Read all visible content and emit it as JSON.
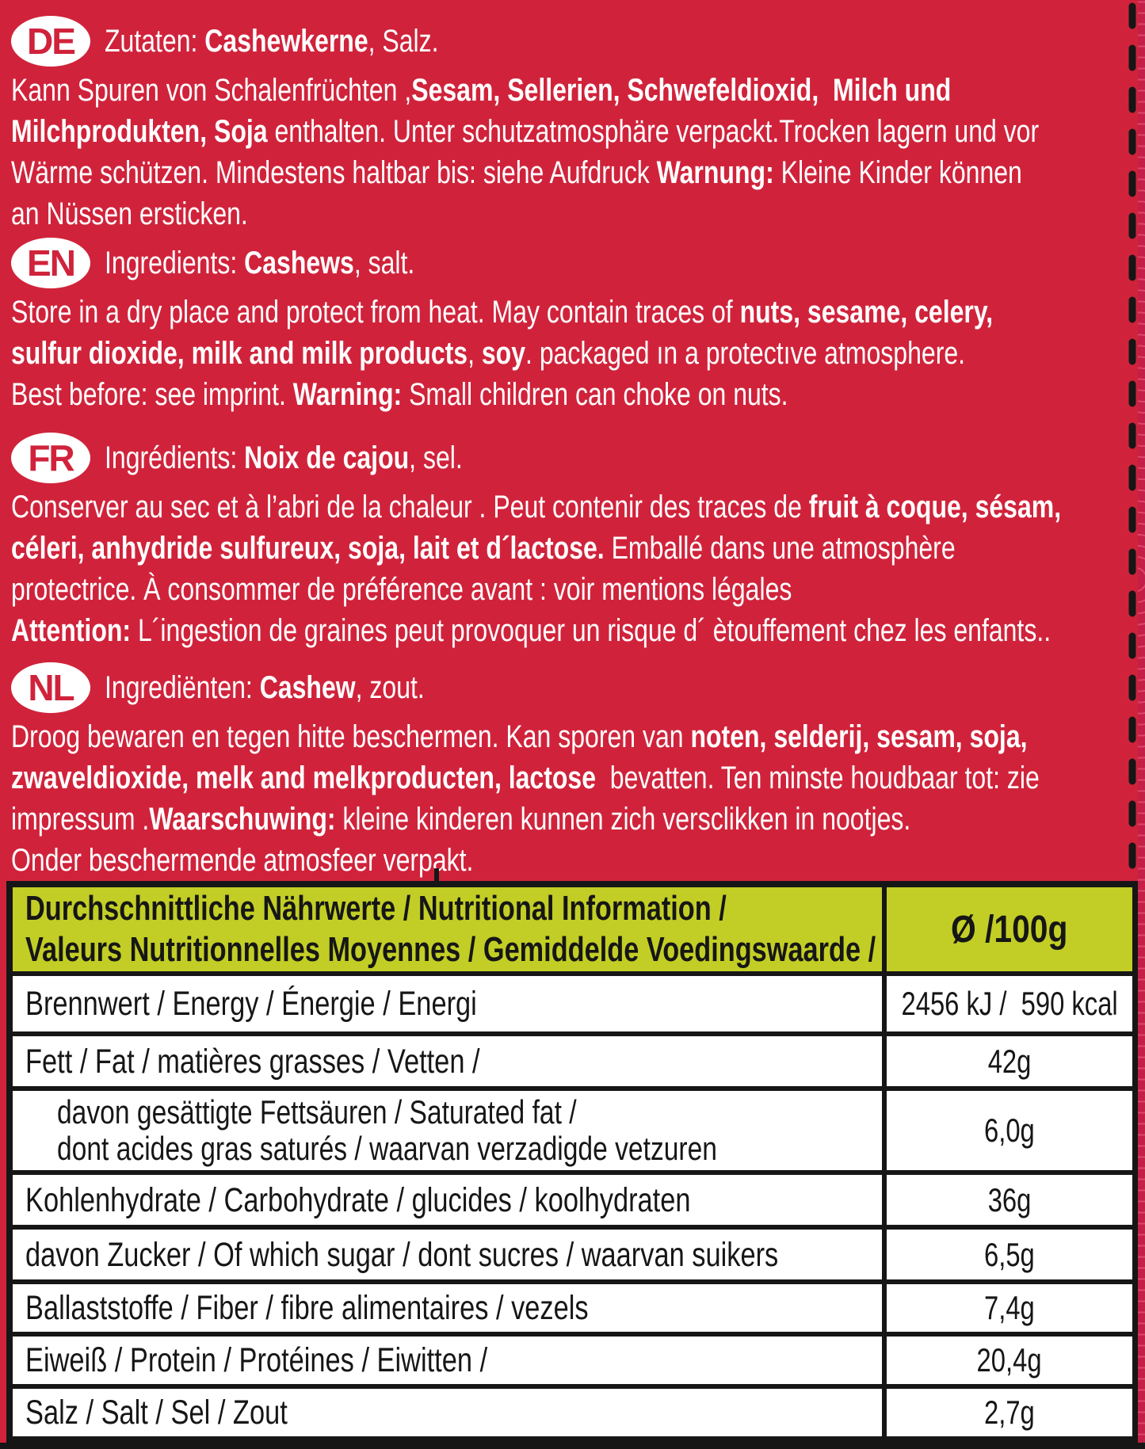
{
  "colors": {
    "background_red": "#d0233b",
    "edge_red": "#c41f46",
    "table_header_yellow": "#c2ce25",
    "table_border_black": "#161616",
    "text_white": "#ffffff"
  },
  "sections": [
    {
      "code": "DE",
      "lines": [
        [
          {
            "t": "Zutaten: "
          },
          {
            "t": "Cashewkerne",
            "b": true
          },
          {
            "t": ", Salz."
          }
        ],
        [
          {
            "t": "Kann Spuren von Schalenfrüchten ,"
          },
          {
            "t": "Sesam, Sellerien, Schwefeldioxid,  Milch und",
            "b": true
          }
        ],
        [
          {
            "t": "Milchprodukten, Soja",
            "b": true
          },
          {
            "t": " enthalten. Unter schutzatmosphäre verpackt.Trocken lagern und vor"
          }
        ],
        [
          {
            "t": "Wärme schützen. Mindestens haltbar bis: siehe Aufdruck "
          },
          {
            "t": "Warnung:",
            "b": true
          },
          {
            "t": " Kleine Kinder können"
          }
        ],
        [
          {
            "t": "an Nüssen ersticken."
          }
        ]
      ]
    },
    {
      "code": "EN",
      "lines": [
        [
          {
            "t": "Ingredients: "
          },
          {
            "t": "Cashews",
            "b": true
          },
          {
            "t": ", salt."
          }
        ],
        [
          {
            "t": "Store in a dry place and protect from heat. May contain traces of "
          },
          {
            "t": "nuts, sesame, celery,",
            "b": true
          }
        ],
        [
          {
            "t": "sulfur dioxide, milk and milk products",
            "b": true
          },
          {
            "t": ", "
          },
          {
            "t": "soy",
            "b": true
          },
          {
            "t": ". packaged ın a protectıve atmosphere."
          }
        ],
        [
          {
            "t": "Best before: see imprint. "
          },
          {
            "t": "Warning:",
            "b": true
          },
          {
            "t": " Small children can choke on nuts."
          }
        ]
      ]
    },
    {
      "code": "FR",
      "lines": [
        [
          {
            "t": "Ingrédients: "
          },
          {
            "t": "Noix de cajou",
            "b": true
          },
          {
            "t": ", sel."
          }
        ],
        [
          {
            "t": "Conserver au sec et à l’abri de la chaleur . Peut contenir des traces de "
          },
          {
            "t": "fruit à coque, sésam,",
            "b": true
          }
        ],
        [
          {
            "t": "céleri, anhydride sulfureux, soja, lait et d´lactose.",
            "b": true
          },
          {
            "t": " Emballé dans une atmosphère"
          }
        ],
        [
          {
            "t": "protectrice. À consommer de préférence avant : voir mentions légales"
          }
        ],
        [
          {
            "t": "Attention:",
            "b": true
          },
          {
            "t": " L´ingestion de graines peut provoquer un risque d´ ètouffement chez les enfants.."
          }
        ]
      ]
    },
    {
      "code": "NL",
      "lines": [
        [
          {
            "t": "Ingrediënten: "
          },
          {
            "t": "Cashew",
            "b": true
          },
          {
            "t": ", zout."
          }
        ],
        [
          {
            "t": "Droog bewaren en tegen hitte beschermen. Kan sporen van "
          },
          {
            "t": "noten, selderij, sesam, soja,",
            "b": true
          }
        ],
        [
          {
            "t": "zwaveldioxide, melk and melkproducten, lactose",
            "b": true
          },
          {
            "t": "  bevatten. Ten minste houdbaar tot: zie"
          }
        ],
        [
          {
            "t": "impressum ."
          },
          {
            "t": "Waarschuwing:",
            "b": true
          },
          {
            "t": " kleine kinderen kunnen zich versclikken in nootjes."
          }
        ],
        [
          {
            "t": "Onder beschermende atmosfeer verpakt."
          }
        ]
      ]
    }
  ],
  "nutrition_table": {
    "header_line1": "Durchschnittliche Nährwerte / Nutritional Information /",
    "header_line2": "Valeurs Nutritionnelles Moyennes / Gemiddelde Voedingswaarde /",
    "per_column": "Ø /100g",
    "rows": [
      {
        "label": "Brennwert / Energy / Énergie / Energi",
        "value": "2456 kJ /  590 kcal"
      },
      {
        "label": "Fett / Fat / matières grasses / Vetten /",
        "value": "42g"
      },
      {
        "label": "davon gesättigte Fettsäuren / Saturated fat /",
        "label2": "dont acides gras saturés / waarvan verzadigde vetzuren",
        "value": "6,0g",
        "indent": true
      },
      {
        "label": "Kohlenhydrate / Carbohydrate / glucides / koolhydraten",
        "value": "36g"
      },
      {
        "label": "davon Zucker / Of which sugar / dont sucres / waarvan suikers",
        "value": "6,5g"
      },
      {
        "label": "Ballaststoffe / Fiber / fibre alimentaires / vezels",
        "value": "7,4g"
      },
      {
        "label": "Eiweiß / Protein / Protéines / Eiwitten /",
        "value": "20,4g"
      },
      {
        "label": "Salz / Salt / Sel / Zout",
        "value": "2,7g"
      }
    ]
  }
}
